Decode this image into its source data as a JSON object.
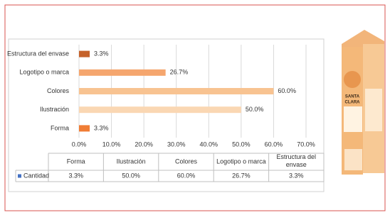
{
  "chart_data": {
    "type": "bar",
    "orientation": "horizontal",
    "categories": [
      "Forma",
      "Ilustración",
      "Colores",
      "Logotipo o marca",
      "Estructura del envase"
    ],
    "series": [
      {
        "name": "Cantidad",
        "color": "#4472c4",
        "values": [
          3.3,
          50.0,
          60.0,
          26.7,
          3.3
        ],
        "value_labels": [
          "3.3%",
          "50.0%",
          "60.0%",
          "26.7%",
          "3.3%"
        ],
        "bar_colors": [
          "#f07d35",
          "#fad7b3",
          "#f8c391",
          "#f5a66e",
          "#c5622b"
        ]
      }
    ],
    "xlim": [
      0,
      70
    ],
    "xticks": [
      {
        "value": 0,
        "label": "0.0%"
      },
      {
        "value": 10,
        "label": "10.0%"
      },
      {
        "value": 20,
        "label": "20.0%"
      },
      {
        "value": 30,
        "label": "30.0%"
      },
      {
        "value": 40,
        "label": "40.0%"
      },
      {
        "value": 50,
        "label": "50.0%"
      },
      {
        "value": 60,
        "label": "60.0%"
      },
      {
        "value": 70,
        "label": "70.0%"
      }
    ],
    "grid": true,
    "data_table": true
  },
  "product": {
    "brand_top": "SANTA",
    "brand_bottom": "CLARA"
  }
}
